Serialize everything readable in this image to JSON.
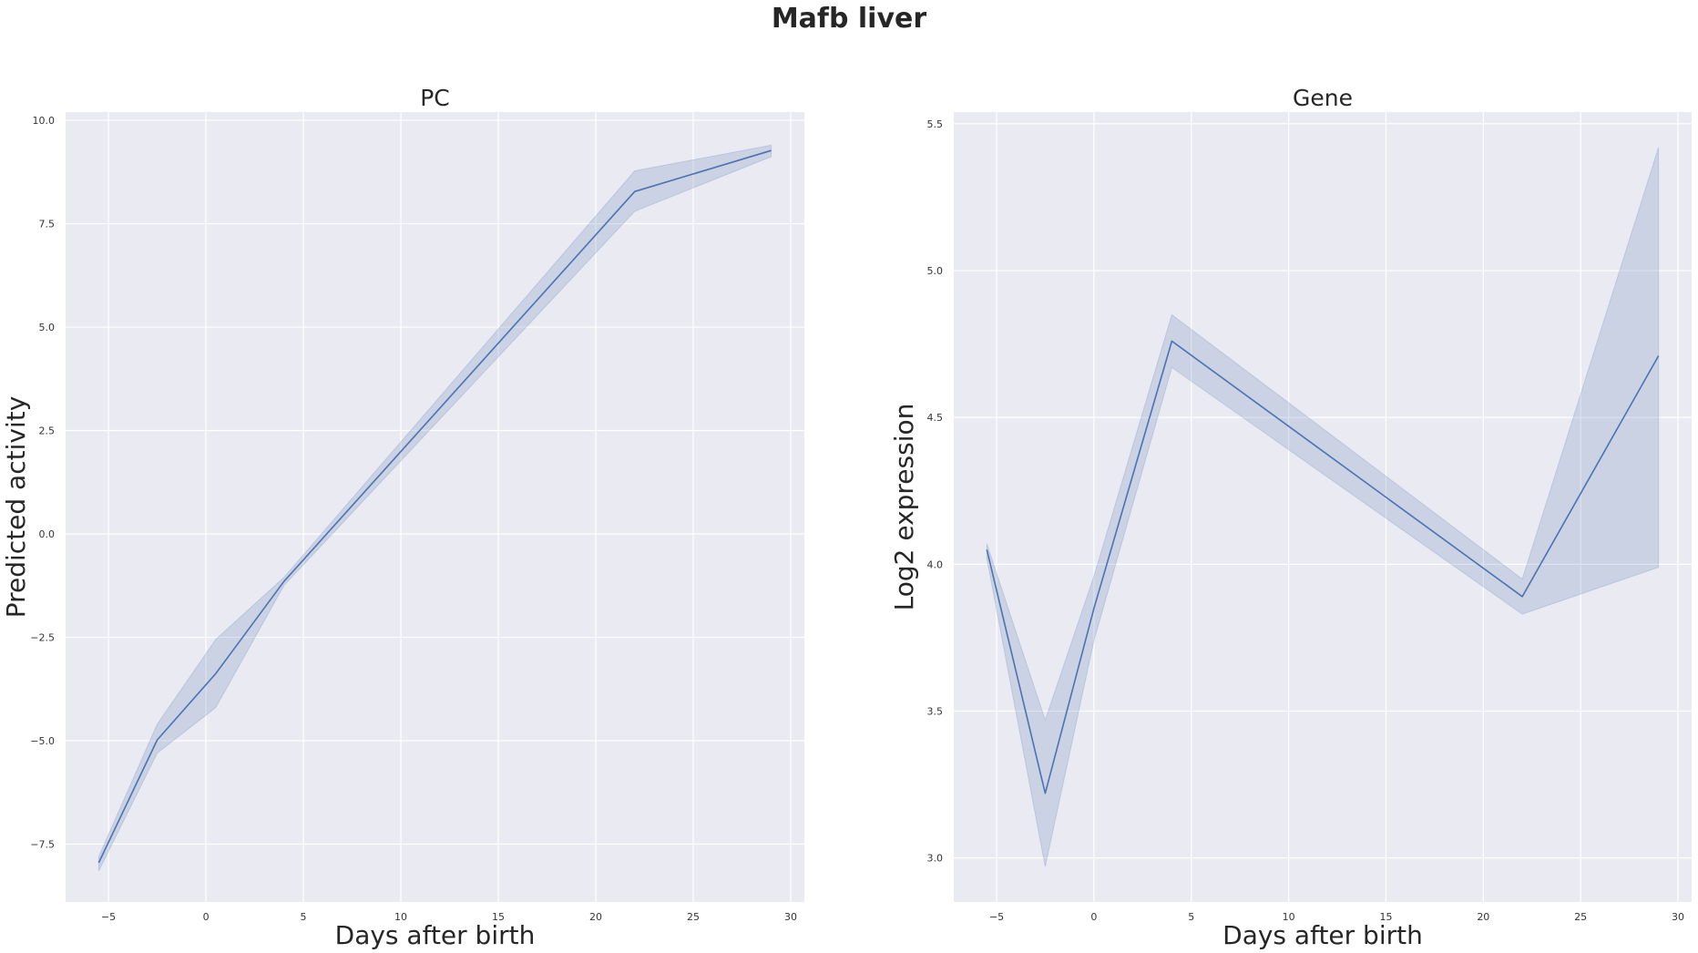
{
  "figure": {
    "suptitle": "Mafb liver"
  },
  "colors": {
    "background": "#ffffff",
    "axes_face": "#eaeaf2",
    "grid": "#ffffff",
    "line": "#4c72b0",
    "band": "#4c72b0"
  },
  "chart_data": [
    {
      "type": "line",
      "title": "PC",
      "xlabel": "Days after birth",
      "ylabel": "Predicted activity",
      "grid": true,
      "xlim": [
        -7.2,
        30.7
      ],
      "ylim": [
        -8.9,
        10.2
      ],
      "xticks": [
        -5,
        0,
        5,
        10,
        15,
        20,
        25,
        30
      ],
      "xtick_labels": [
        "−5",
        "0",
        "5",
        "10",
        "15",
        "20",
        "25",
        "30"
      ],
      "yticks": [
        -7.5,
        -5.0,
        -2.5,
        0.0,
        2.5,
        5.0,
        7.5,
        10.0
      ],
      "ytick_labels": [
        "−7.5",
        "−5.0",
        "−2.5",
        "0.0",
        "2.5",
        "5.0",
        "7.5",
        "10.0"
      ],
      "series": [
        {
          "x": [
            -5.5,
            -2.5,
            0.5,
            4,
            22,
            29
          ],
          "y": [
            -7.95,
            -4.98,
            -3.38,
            -1.15,
            8.28,
            9.27
          ],
          "ci_low": [
            -8.15,
            -5.3,
            -4.2,
            -1.25,
            7.8,
            9.12
          ],
          "ci_high": [
            -7.8,
            -4.6,
            -2.55,
            -1.05,
            8.78,
            9.4
          ]
        }
      ]
    },
    {
      "type": "line",
      "title": "Gene",
      "xlabel": "Days after birth",
      "ylabel": "Log2 expression",
      "grid": true,
      "xlim": [
        -7.2,
        30.7
      ],
      "ylim": [
        2.85,
        5.54
      ],
      "xticks": [
        -5,
        0,
        5,
        10,
        15,
        20,
        25,
        30
      ],
      "xtick_labels": [
        "−5",
        "0",
        "5",
        "10",
        "15",
        "20",
        "25",
        "30"
      ],
      "yticks": [
        3.0,
        3.5,
        4.0,
        4.5,
        5.0,
        5.5
      ],
      "ytick_labels": [
        "3.0",
        "3.5",
        "4.0",
        "4.5",
        "5.0",
        "5.5"
      ],
      "series": [
        {
          "x": [
            -5.5,
            -2.5,
            0,
            4,
            22,
            29
          ],
          "y": [
            4.05,
            3.22,
            3.85,
            4.76,
            3.89,
            4.71
          ],
          "ci_low": [
            4.02,
            2.97,
            3.74,
            4.67,
            3.83,
            3.99
          ],
          "ci_high": [
            4.07,
            3.47,
            3.96,
            4.85,
            3.95,
            5.42
          ]
        }
      ]
    }
  ]
}
